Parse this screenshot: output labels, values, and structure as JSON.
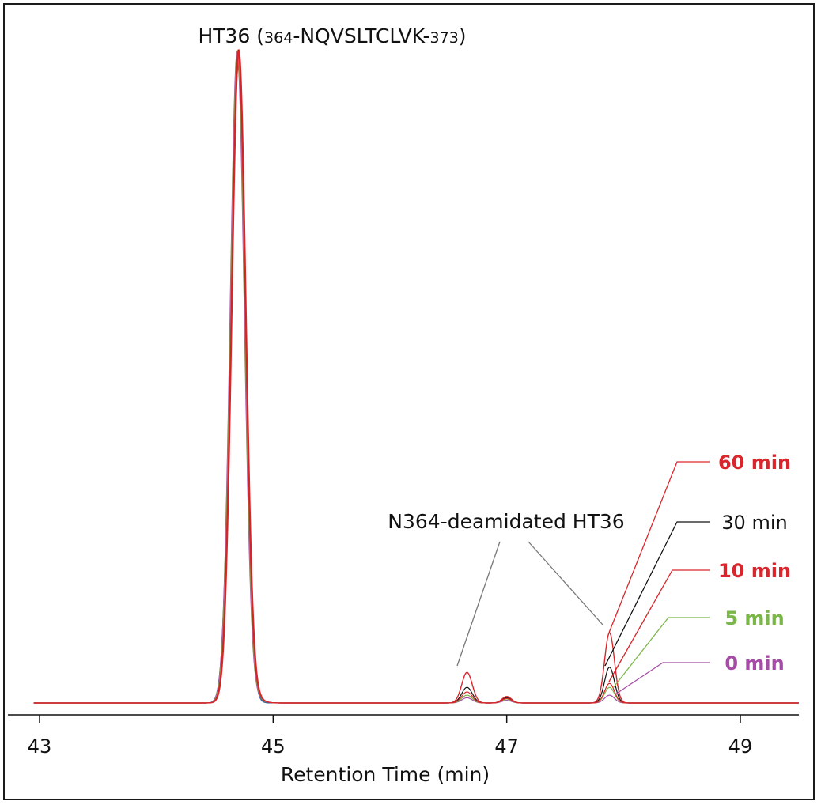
{
  "chart_data": {
    "type": "line",
    "title_main": "HT36 (",
    "title_sub_start": "364",
    "title_mid": "-NQVSLTCLVK-",
    "title_sub_end": "373",
    "title_close": ")",
    "annotation": "N364-deamidated HT36",
    "xlabel": "Retention Time (min)",
    "xlim": [
      42.95,
      49.5
    ],
    "ylim": [
      0,
      100
    ],
    "xticks": [
      "43",
      "45",
      "47",
      "49"
    ],
    "main_peak": {
      "x": 44.7,
      "height": 100,
      "width": 0.06
    },
    "series": [
      {
        "name": "0 min",
        "color": "#a64ca6",
        "peak_a": 0.8,
        "peak_b": 0.4,
        "peak_c": 1.2
      },
      {
        "name": "5 min",
        "color": "#7ab648",
        "peak_a": 1.2,
        "peak_b": 0.6,
        "peak_c": 2.4
      },
      {
        "name": "10 min",
        "color": "#d9262c",
        "peak_a": 1.7,
        "peak_b": 0.7,
        "peak_c": 3.0
      },
      {
        "name": "30 min",
        "color": "#111111",
        "peak_a": 2.4,
        "peak_b": 0.8,
        "peak_c": 5.5
      },
      {
        "name": "60 min",
        "color": "#d9262c",
        "peak_a": 4.7,
        "peak_b": 1.0,
        "peak_c": 10.8
      }
    ],
    "peak_positions": {
      "a": 46.66,
      "b": 47.0,
      "c": 47.88
    },
    "grid": false
  }
}
